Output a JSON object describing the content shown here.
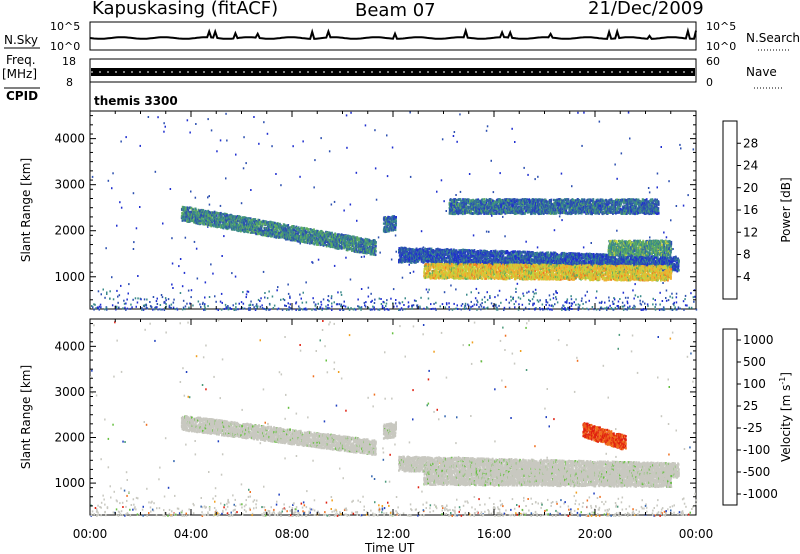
{
  "header": {
    "station": "Kapuskasing (fitACF)",
    "beam": "Beam 07",
    "date": "21/Dec/2009"
  },
  "noise_panel": {
    "left_label": "N.Sky",
    "left_ticks": [
      "10^5",
      "10^0"
    ],
    "right_label": "N.Search",
    "right_ticks": [
      "10^5",
      "10^0"
    ]
  },
  "freq_panel": {
    "left_label_1": "Freq.",
    "left_label_2": "[MHz]",
    "left_ticks": [
      "18",
      "8"
    ],
    "right_label": "Nave",
    "right_ticks": [
      "60",
      "0"
    ]
  },
  "cpid_panel": {
    "label": "CPID",
    "program": "themis 3300"
  },
  "x_axis": {
    "label": "Time UT",
    "ticks": [
      "00:00",
      "04:00",
      "08:00",
      "12:00",
      "16:00",
      "20:00",
      "00:00"
    ]
  },
  "chart_data": [
    {
      "type": "heatmap",
      "title": "",
      "ylabel": "Slant Range [km]",
      "xlabel": "Time UT",
      "xlim": [
        0,
        24
      ],
      "ylim": [
        300,
        4600
      ],
      "y_ticks": [
        1000,
        2000,
        3000,
        4000
      ],
      "colorbar": {
        "label": "Power [dB]",
        "ticks": [
          "4",
          "8",
          "12",
          "16",
          "20",
          "24",
          "28"
        ],
        "colors": [
          "#1f2fd0",
          "#2c4fb0",
          "#3a8a8a",
          "#5fae5f",
          "#c8d23c",
          "#f0b030",
          "#f07820",
          "#d82818"
        ]
      },
      "echo_bands": [
        {
          "t0": 3.6,
          "t1": 11.3,
          "r0": 2400,
          "r1": 1650,
          "level": 10
        },
        {
          "t0": 11.6,
          "t1": 12.1,
          "r0": 2150,
          "r1": 2200,
          "level": 8
        },
        {
          "t0": 12.2,
          "t1": 23.3,
          "r0": 1500,
          "r1": 1300,
          "level": 6
        },
        {
          "t0": 13.2,
          "t1": 23.0,
          "r0": 1150,
          "r1": 1100,
          "level": 20
        },
        {
          "t0": 14.2,
          "t1": 22.5,
          "r0": 2550,
          "r1": 2550,
          "level": 8
        },
        {
          "t0": 20.5,
          "t1": 23.0,
          "r0": 1650,
          "r1": 1650,
          "level": 12
        }
      ]
    },
    {
      "type": "heatmap",
      "title": "",
      "ylabel": "Slant Range [km]",
      "xlabel": "Time UT",
      "xlim": [
        0,
        24
      ],
      "ylim": [
        300,
        4600
      ],
      "y_ticks": [
        1000,
        2000,
        3000,
        4000
      ],
      "colorbar": {
        "label": "Velocity [m s^-1]",
        "ticks": [
          "1000",
          "500",
          "100",
          "25",
          "-25",
          "-100",
          "-500",
          "-1000"
        ],
        "colors": [
          "#2040c0",
          "#3466b0",
          "#4a9a7a",
          "#66c040",
          "#c8c8c0",
          "#f0a020",
          "#f07020",
          "#e02010"
        ]
      },
      "echo_bands": [
        {
          "t0": 3.6,
          "t1": 11.3,
          "r0": 2350,
          "r1": 1800,
          "level": 0
        },
        {
          "t0": 11.6,
          "t1": 12.1,
          "r0": 2150,
          "r1": 2200,
          "level": 0
        },
        {
          "t0": 12.2,
          "t1": 23.3,
          "r0": 1450,
          "r1": 1300,
          "level": 0
        },
        {
          "t0": 13.2,
          "t1": 23.0,
          "r0": 1150,
          "r1": 1100,
          "level": 0
        },
        {
          "t0": 19.5,
          "t1": 21.2,
          "r0": 2200,
          "r1": 1900,
          "level": -300
        }
      ]
    }
  ]
}
